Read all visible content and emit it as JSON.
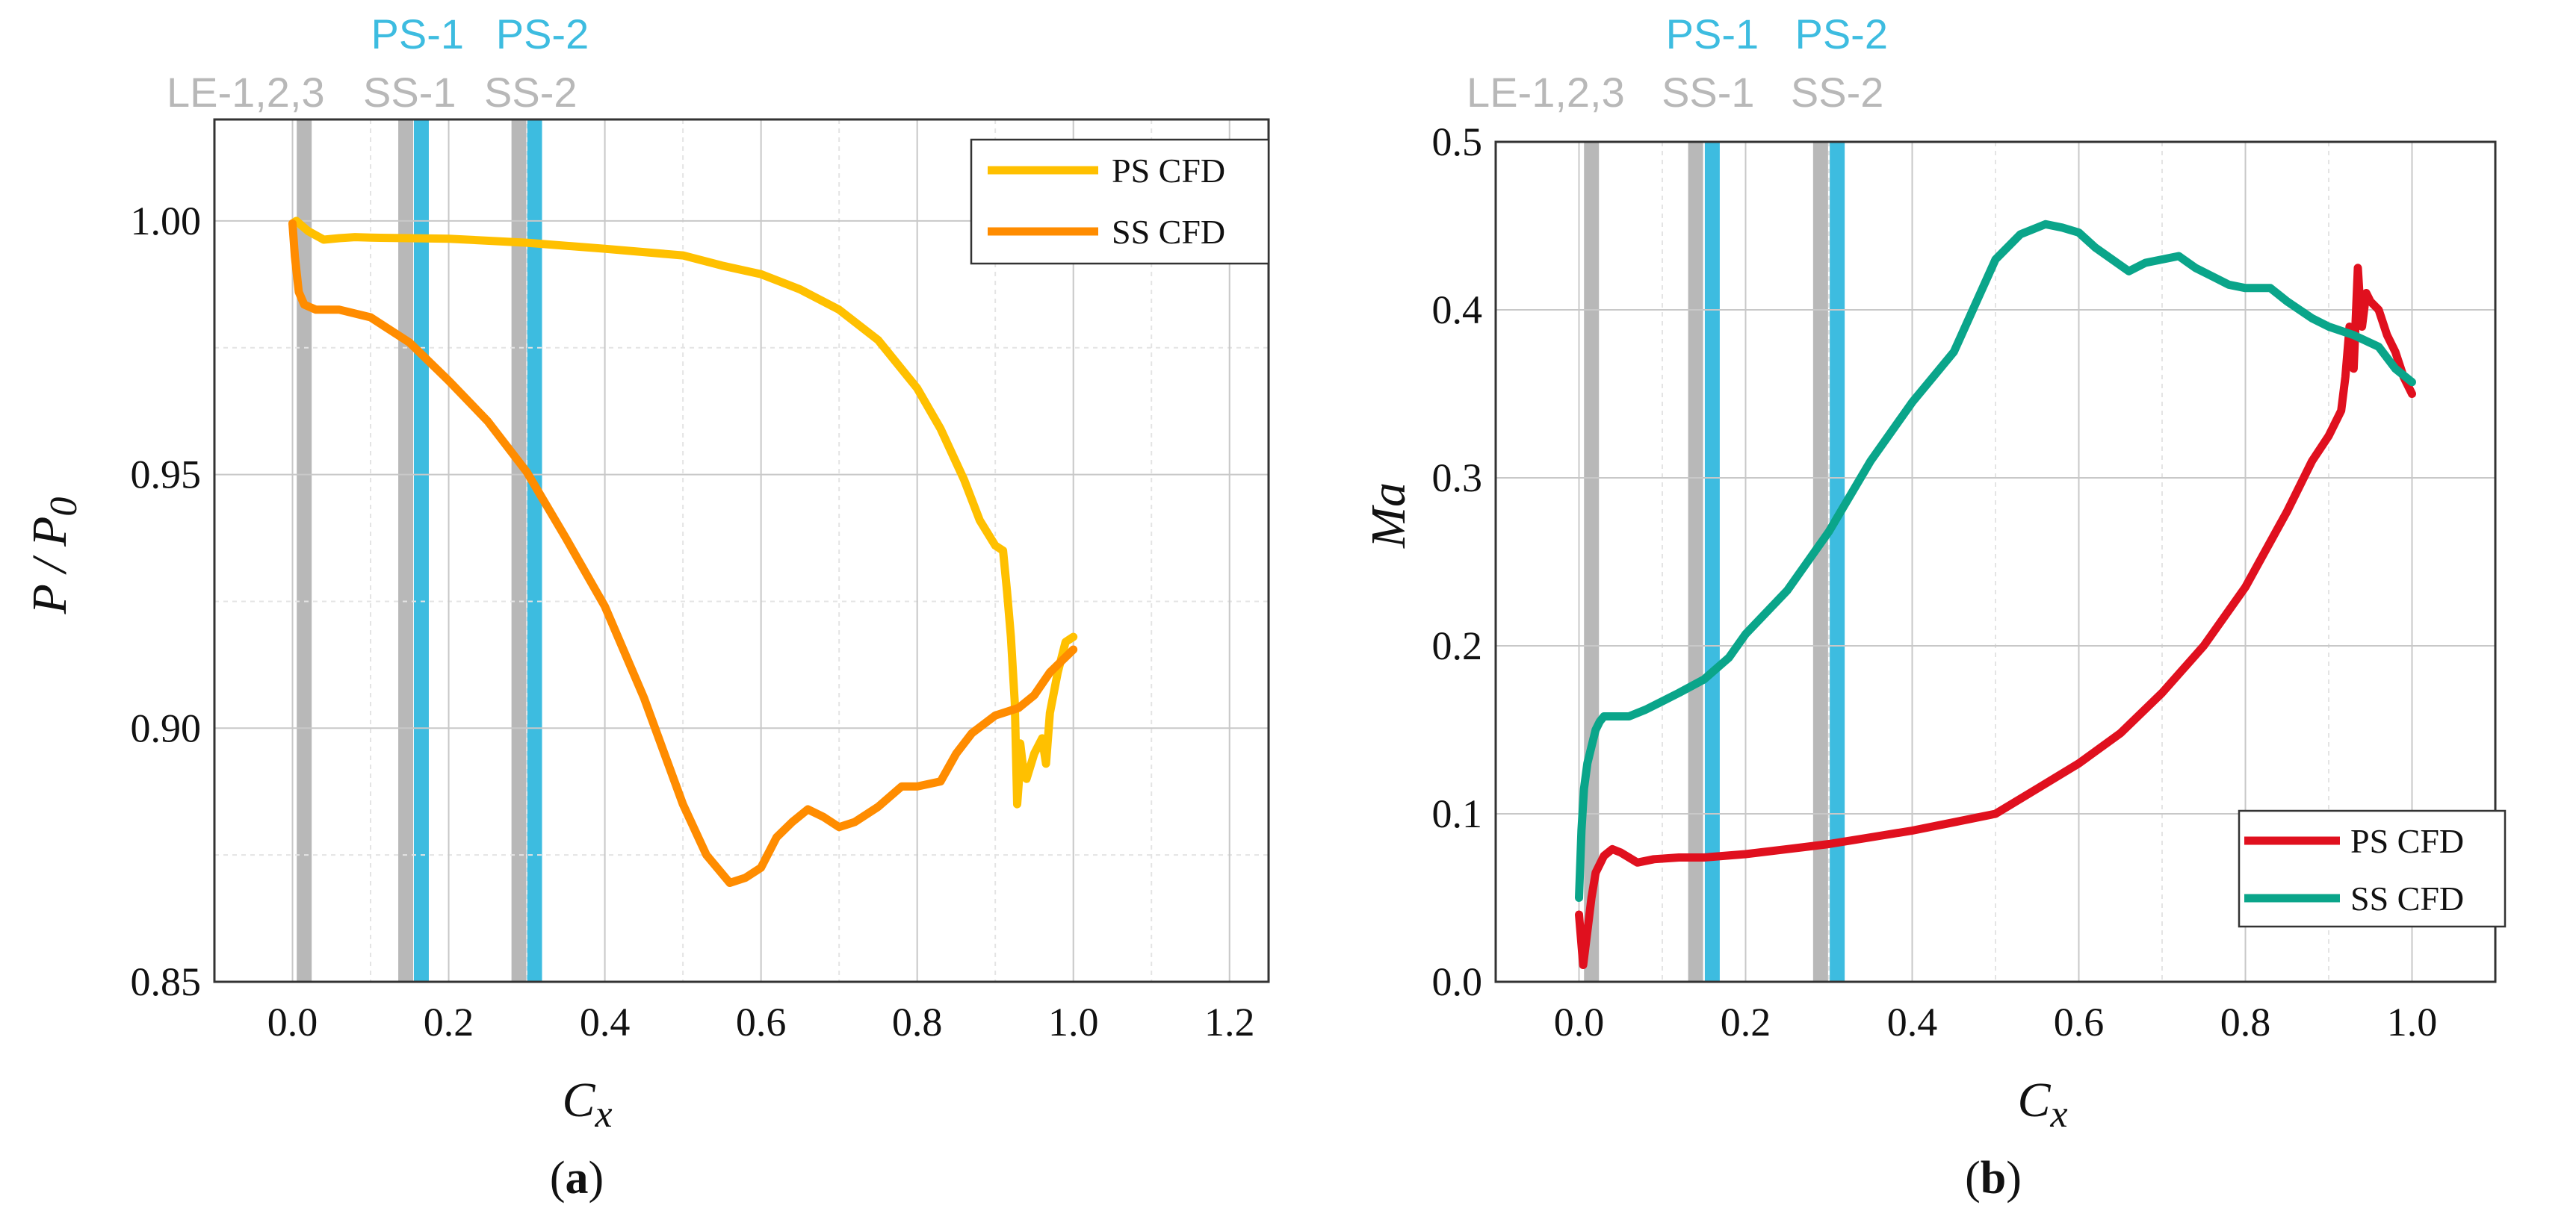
{
  "colors": {
    "ps_a": "#FFC000",
    "ss_a": "#FF8C00",
    "ps_b": "#E0101E",
    "ss_b": "#0AA58A",
    "probe_ps": "#3DBCE0",
    "probe_le_ss": "#B8B8B8",
    "grid": "#C8C8C8",
    "minor_grid": "#E4E4E4"
  },
  "captions": {
    "a": {
      "open": "(",
      "letter": "a",
      "close": ")"
    },
    "b": {
      "open": "(",
      "letter": "b",
      "close": ")"
    }
  },
  "chart_data": [
    {
      "id": "a",
      "type": "line",
      "title": "",
      "xlabel": "C",
      "xlabel_sub": "x",
      "ylabel": "P / P",
      "ylabel_sub": "0",
      "xlim": [
        -0.1,
        1.25
      ],
      "ylim": [
        0.85,
        1.02
      ],
      "xticks": [
        0.0,
        0.2,
        0.4,
        0.6,
        0.8,
        1.0,
        1.2
      ],
      "xtick_labels": [
        "0.0",
        "0.2",
        "0.4",
        "0.6",
        "0.8",
        "1.0",
        "1.2"
      ],
      "yticks": [
        0.85,
        0.9,
        0.95,
        1.0
      ],
      "ytick_labels": [
        "0.85",
        "0.90",
        "0.95",
        "1.00"
      ],
      "grid": true,
      "legend_position": "top-right",
      "probe_lines": [
        {
          "x": 0.015,
          "kind": "le_ss"
        },
        {
          "x": 0.145,
          "kind": "le_ss"
        },
        {
          "x": 0.165,
          "kind": "ps"
        },
        {
          "x": 0.29,
          "kind": "le_ss"
        },
        {
          "x": 0.31,
          "kind": "ps"
        }
      ],
      "probe_labels": [
        {
          "text": "LE-1,2,3",
          "x": -0.06,
          "row": "lower",
          "kind": "le_ss"
        },
        {
          "text": "SS-1",
          "x": 0.15,
          "row": "lower",
          "kind": "le_ss"
        },
        {
          "text": "SS-2",
          "x": 0.305,
          "row": "lower",
          "kind": "le_ss"
        },
        {
          "text": "PS-1",
          "x": 0.16,
          "row": "upper",
          "kind": "ps"
        },
        {
          "text": "PS-2",
          "x": 0.32,
          "row": "upper",
          "kind": "ps"
        }
      ],
      "series": [
        {
          "name": "PS CFD",
          "color_key": "ps_a",
          "x": [
            0.0,
            0.005,
            0.01,
            0.02,
            0.04,
            0.06,
            0.08,
            0.1,
            0.15,
            0.2,
            0.3,
            0.4,
            0.5,
            0.55,
            0.6,
            0.65,
            0.7,
            0.75,
            0.8,
            0.83,
            0.86,
            0.88,
            0.9,
            0.91,
            0.915,
            0.92,
            0.925,
            0.928,
            0.93,
            0.932,
            0.935,
            0.94,
            0.95,
            0.96,
            0.965,
            0.97,
            0.98,
            0.99,
            1.0
          ],
          "y": [
            0.9995,
            1.0,
            0.9993,
            0.998,
            0.9963,
            0.9966,
            0.9968,
            0.9967,
            0.9966,
            0.9965,
            0.9957,
            0.9945,
            0.9932,
            0.9912,
            0.9895,
            0.9865,
            0.9825,
            0.9765,
            0.967,
            0.959,
            0.949,
            0.941,
            0.936,
            0.935,
            0.927,
            0.918,
            0.905,
            0.885,
            0.889,
            0.897,
            0.893,
            0.89,
            0.895,
            0.898,
            0.893,
            0.903,
            0.911,
            0.917,
            0.918
          ]
        },
        {
          "name": "SS CFD",
          "color_key": "ss_a",
          "x": [
            0.0,
            0.003,
            0.008,
            0.015,
            0.03,
            0.06,
            0.1,
            0.15,
            0.2,
            0.25,
            0.3,
            0.35,
            0.4,
            0.45,
            0.5,
            0.53,
            0.56,
            0.58,
            0.6,
            0.62,
            0.64,
            0.66,
            0.68,
            0.7,
            0.72,
            0.75,
            0.78,
            0.8,
            0.83,
            0.85,
            0.87,
            0.9,
            0.93,
            0.95,
            0.97,
            1.0
          ],
          "y": [
            0.9995,
            0.993,
            0.986,
            0.9835,
            0.9825,
            0.9825,
            0.981,
            0.976,
            0.9685,
            0.9605,
            0.9505,
            0.9375,
            0.924,
            0.906,
            0.885,
            0.875,
            0.8695,
            0.8705,
            0.8725,
            0.8785,
            0.8815,
            0.884,
            0.8825,
            0.8805,
            0.8815,
            0.8845,
            0.8885,
            0.8885,
            0.8895,
            0.895,
            0.899,
            0.9025,
            0.904,
            0.9065,
            0.911,
            0.9155
          ]
        }
      ]
    },
    {
      "id": "b",
      "type": "line",
      "title": "",
      "xlabel": "C",
      "xlabel_sub": "x",
      "ylabel": "Ma",
      "xlim": [
        -0.1,
        1.1
      ],
      "ylim": [
        0.0,
        0.5
      ],
      "xticks": [
        0.0,
        0.2,
        0.4,
        0.6,
        0.8,
        1.0
      ],
      "xtick_labels": [
        "0.0",
        "0.2",
        "0.4",
        "0.6",
        "0.8",
        "1.0"
      ],
      "yticks": [
        0.0,
        0.1,
        0.2,
        0.3,
        0.4,
        0.5
      ],
      "ytick_labels": [
        "0.0",
        "0.1",
        "0.2",
        "0.3",
        "0.4",
        "0.5"
      ],
      "grid": true,
      "legend_position": "bottom-right",
      "probe_lines": [
        {
          "x": 0.015,
          "kind": "le_ss"
        },
        {
          "x": 0.14,
          "kind": "le_ss"
        },
        {
          "x": 0.16,
          "kind": "ps"
        },
        {
          "x": 0.29,
          "kind": "le_ss"
        },
        {
          "x": 0.31,
          "kind": "ps"
        }
      ],
      "probe_labels": [
        {
          "text": "LE-1,2,3",
          "x": -0.04,
          "row": "lower",
          "kind": "le_ss"
        },
        {
          "text": "SS-1",
          "x": 0.155,
          "row": "lower",
          "kind": "le_ss"
        },
        {
          "text": "SS-2",
          "x": 0.31,
          "row": "lower",
          "kind": "le_ss"
        },
        {
          "text": "PS-1",
          "x": 0.16,
          "row": "upper",
          "kind": "ps"
        },
        {
          "text": "PS-2",
          "x": 0.315,
          "row": "upper",
          "kind": "ps"
        }
      ],
      "series": [
        {
          "name": "PS CFD",
          "color_key": "ps_b",
          "x": [
            0.0,
            0.005,
            0.01,
            0.015,
            0.02,
            0.03,
            0.04,
            0.05,
            0.07,
            0.09,
            0.12,
            0.15,
            0.2,
            0.25,
            0.3,
            0.35,
            0.4,
            0.45,
            0.5,
            0.55,
            0.6,
            0.65,
            0.7,
            0.75,
            0.8,
            0.85,
            0.88,
            0.9,
            0.915,
            0.92,
            0.925,
            0.93,
            0.935,
            0.938,
            0.94,
            0.945,
            0.95,
            0.96,
            0.97,
            0.98,
            0.99,
            1.0
          ],
          "y": [
            0.04,
            0.01,
            0.03,
            0.05,
            0.065,
            0.075,
            0.079,
            0.077,
            0.071,
            0.073,
            0.074,
            0.074,
            0.076,
            0.079,
            0.082,
            0.086,
            0.09,
            0.095,
            0.1,
            0.115,
            0.13,
            0.148,
            0.172,
            0.2,
            0.235,
            0.28,
            0.31,
            0.325,
            0.34,
            0.36,
            0.39,
            0.365,
            0.425,
            0.4,
            0.39,
            0.41,
            0.405,
            0.4,
            0.385,
            0.375,
            0.36,
            0.35
          ]
        },
        {
          "name": "SS CFD",
          "color_key": "ss_b",
          "x": [
            0.0,
            0.003,
            0.006,
            0.01,
            0.015,
            0.02,
            0.025,
            0.03,
            0.04,
            0.06,
            0.08,
            0.1,
            0.12,
            0.15,
            0.18,
            0.2,
            0.25,
            0.3,
            0.35,
            0.4,
            0.45,
            0.5,
            0.53,
            0.56,
            0.58,
            0.6,
            0.62,
            0.64,
            0.66,
            0.68,
            0.7,
            0.72,
            0.74,
            0.76,
            0.78,
            0.8,
            0.83,
            0.85,
            0.88,
            0.9,
            0.93,
            0.96,
            0.98,
            1.0
          ],
          "y": [
            0.05,
            0.09,
            0.115,
            0.13,
            0.14,
            0.15,
            0.155,
            0.158,
            0.158,
            0.158,
            0.162,
            0.167,
            0.172,
            0.18,
            0.193,
            0.207,
            0.233,
            0.268,
            0.31,
            0.345,
            0.375,
            0.43,
            0.445,
            0.451,
            0.449,
            0.446,
            0.437,
            0.43,
            0.423,
            0.428,
            0.43,
            0.432,
            0.425,
            0.42,
            0.415,
            0.413,
            0.413,
            0.405,
            0.395,
            0.39,
            0.385,
            0.378,
            0.365,
            0.357
          ]
        }
      ]
    }
  ]
}
